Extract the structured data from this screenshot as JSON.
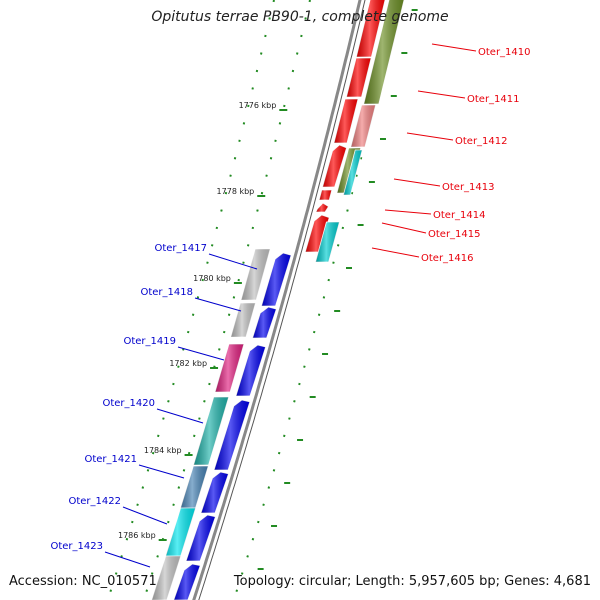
{
  "title": "Opitutus terrae PB90-1, complete genome",
  "footer": {
    "accession": "Accession: NC_010571",
    "info": "Topology: circular; Length: 5,957,605 bp; Genes: 4,681"
  },
  "colors": {
    "right_label": "#e8000b",
    "left_label": "#0000cc",
    "tick": "#228b22",
    "backbone": "#888888"
  },
  "tick_labels": [
    "1776 kbp",
    "1778 kbp",
    "1780 kbp",
    "1782 kbp",
    "1784 kbp",
    "1786 kbp"
  ],
  "right_genes": [
    {
      "label": "Oter_1410",
      "color": "#ff0000"
    },
    {
      "label": "Oter_1411",
      "color": "#6b8e23"
    },
    {
      "label": "Oter_1412",
      "color": "#f08080"
    },
    {
      "label": "Oter_1413",
      "color": "#00ced1"
    },
    {
      "label": "Oter_1414",
      "color": "#ff0000"
    },
    {
      "label": "Oter_1415",
      "color": "#ff0000"
    },
    {
      "label": "Oter_1416",
      "color": "#00ced1"
    }
  ],
  "left_genes": [
    {
      "label": "Oter_1417",
      "color": "#c0c0c0"
    },
    {
      "label": "Oter_1418",
      "color": "#c0c0c0"
    },
    {
      "label": "Oter_1419",
      "color": "#e0207f"
    },
    {
      "label": "Oter_1420",
      "color": "#20b2aa"
    },
    {
      "label": "Oter_1421",
      "color": "#4682b4"
    },
    {
      "label": "Oter_1422",
      "color": "#00e5ee"
    },
    {
      "label": "Oter_1423",
      "color": "#c0c0c0"
    }
  ]
}
